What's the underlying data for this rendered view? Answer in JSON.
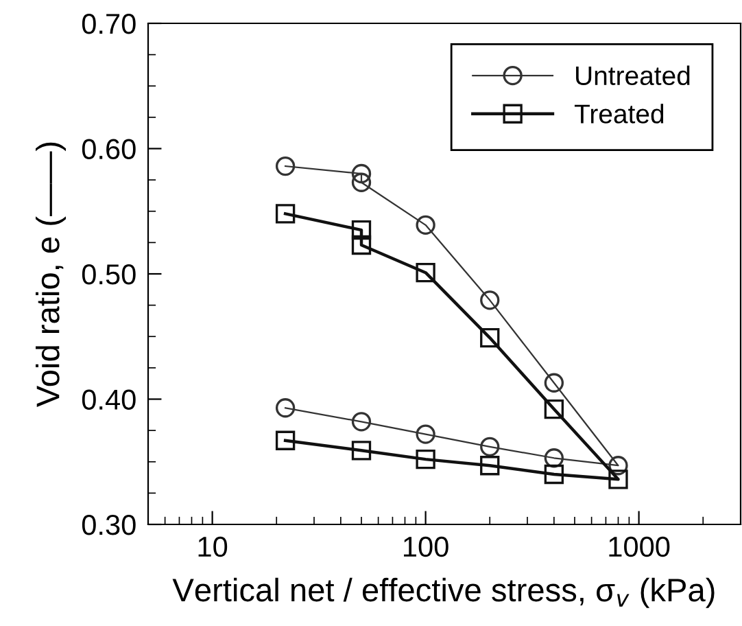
{
  "chart_data": {
    "type": "line",
    "xlabel": "Vertical net / effective stress, σ$_{v}$ (kPa)",
    "ylabel": "Void ratio, e (——)",
    "log": "x",
    "xlim": [
      5,
      3000
    ],
    "xticks": [
      {
        "value": 6,
        "label": null
      },
      {
        "value": 7,
        "label": null
      },
      {
        "value": 8,
        "label": null
      },
      {
        "value": 9,
        "label": null
      },
      10,
      {
        "value": 20,
        "label": null
      },
      {
        "value": 30,
        "label": null
      },
      {
        "value": 40,
        "label": null
      },
      {
        "value": 50,
        "label": null
      },
      {
        "value": 60,
        "label": null
      },
      {
        "value": 70,
        "label": null
      },
      {
        "value": 80,
        "label": null
      },
      {
        "value": 90,
        "label": null
      },
      100,
      {
        "value": 200,
        "label": null
      },
      {
        "value": 300,
        "label": null
      },
      {
        "value": 400,
        "label": null
      },
      {
        "value": 500,
        "label": null
      },
      {
        "value": 600,
        "label": null
      },
      {
        "value": 700,
        "label": null
      },
      {
        "value": 800,
        "label": null
      },
      {
        "value": 900,
        "label": null
      },
      1000,
      {
        "value": 2000,
        "label": null
      }
    ],
    "ylim": [
      0.3,
      0.7
    ],
    "yticks": [
      {
        "value": 0.3,
        "label": "0.30"
      },
      {
        "value": 0.325,
        "label": null
      },
      {
        "value": 0.35,
        "label": null
      },
      {
        "value": 0.375,
        "label": null
      },
      {
        "value": 0.4,
        "label": "0.40"
      },
      {
        "value": 0.425,
        "label": null
      },
      {
        "value": 0.45,
        "label": null
      },
      {
        "value": 0.475,
        "label": null
      },
      {
        "value": 0.5,
        "label": "0.50"
      },
      {
        "value": 0.525,
        "label": null
      },
      {
        "value": 0.55,
        "label": null
      },
      {
        "value": 0.575,
        "label": null
      },
      {
        "value": 0.6,
        "label": "0.60"
      },
      {
        "value": 0.625,
        "label": null
      },
      {
        "value": 0.65,
        "label": null
      },
      {
        "value": 0.675,
        "label": null
      },
      {
        "value": 0.7,
        "label": "0.70"
      }
    ],
    "grid": false,
    "legend": "top right",
    "series": [
      {
        "name": "Untreated",
        "color": "#333333",
        "marker": "circle",
        "line_style": "solid",
        "x": [
          22,
          50,
          50,
          100,
          200,
          400,
          800,
          400,
          200,
          100,
          50,
          22
        ],
        "values": [
          0.586,
          0.58,
          0.573,
          0.539,
          0.479,
          0.413,
          0.347,
          0.353,
          0.362,
          0.372,
          0.382,
          0.393
        ]
      },
      {
        "name": "Treated",
        "color": "#111111",
        "marker": "square",
        "line_style": "solid",
        "x": [
          22,
          50,
          50,
          100,
          200,
          400,
          800,
          400,
          200,
          100,
          50,
          22
        ],
        "values": [
          0.548,
          0.535,
          0.523,
          0.501,
          0.449,
          0.392,
          0.336,
          0.34,
          0.347,
          0.352,
          0.359,
          0.367
        ]
      }
    ]
  }
}
